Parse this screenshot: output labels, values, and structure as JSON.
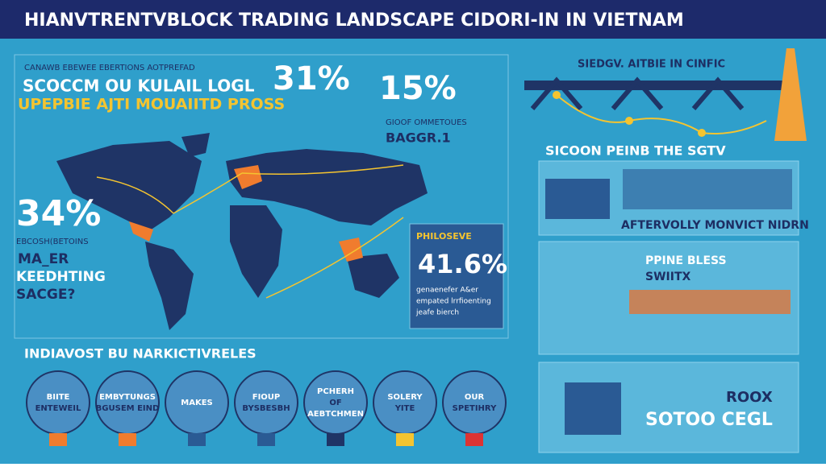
{
  "header": {
    "title": "HIANVTRENTVBLOCK TRADING LANDSCAPE CIDORI-IN IN VIETNAM"
  },
  "intro": {
    "kicker": "CANAWB EBEWEE EBERTIONS AOTPREFAD",
    "line1": "SCOCCM OU KULAIL LOGL",
    "line2": "UPEPBIE AJTI MOUAIITD PROSS",
    "stat": "31%"
  },
  "stat_15": {
    "value": "15%",
    "caption": "GIOOF OMMETOUES",
    "label": "BAGGR.1"
  },
  "stat_34": {
    "value": "34%",
    "caption": "EBCOSH(BETOINS",
    "line1": "MA_ER",
    "line2": "KEEDHTING",
    "line3": "SACGE?"
  },
  "highlight_box": {
    "kicker": "PHILOSEVE",
    "value": "41.6%",
    "lines": [
      "genaenefer A&er",
      "empated lrrfioenting",
      "jeafe bierch"
    ]
  },
  "bottom": {
    "heading": "INDIAVOST BU NARKICTIVRELES",
    "items": [
      [
        "BIITE",
        "ENTEWEIL"
      ],
      [
        "EMBYTUNGS",
        "BGUSEM EIND"
      ],
      [
        "MAKES"
      ],
      [
        "FIOUP",
        "BYSBESBH"
      ],
      [
        "PCHERH",
        "OF",
        "AEBTCHMEN"
      ],
      [
        "SOLERY",
        "YITE"
      ],
      [
        "OUR",
        "SPETIHRY"
      ]
    ]
  },
  "right": {
    "top_label": "SIEDGV. AITBIE IN CINFIC",
    "section_title": "SICOON PEINB THE SGTV",
    "panel1_caption": "AFTERVOLLY MONVICT NIDRN",
    "panel2_title": "PPINE BLESS",
    "panel2_sub": "SWIITX",
    "panel3_a": "ROOX",
    "panel3_b": "SOTOO CEGL"
  }
}
